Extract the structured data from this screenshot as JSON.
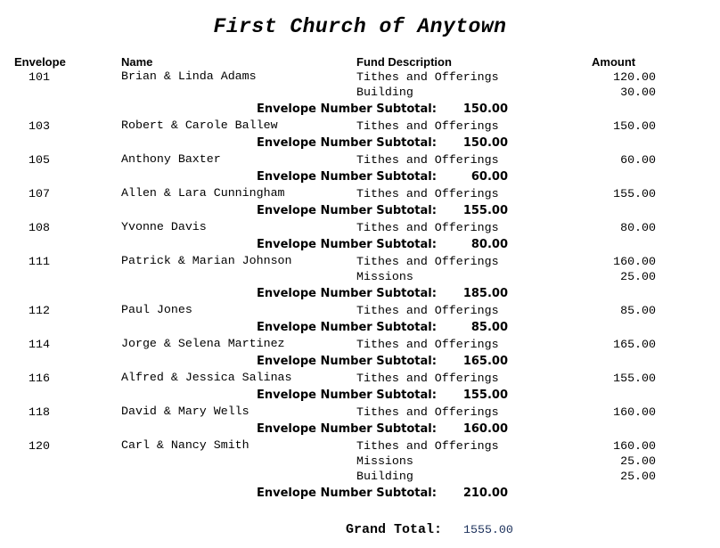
{
  "title": "First Church of Anytown",
  "headers": {
    "envelope": "Envelope",
    "name": "Name",
    "fund": "Fund Description",
    "amount": "Amount"
  },
  "subtotal_label": "Envelope Number Subtotal:",
  "groups": [
    {
      "envelope": "101",
      "name": "Brian & Linda Adams",
      "items": [
        {
          "fund": "Tithes and Offerings",
          "amount": "120.00"
        },
        {
          "fund": "Building",
          "amount": "30.00"
        }
      ],
      "subtotal": "150.00"
    },
    {
      "envelope": "103",
      "name": "Robert & Carole Ballew",
      "items": [
        {
          "fund": "Tithes and Offerings",
          "amount": "150.00"
        }
      ],
      "subtotal": "150.00"
    },
    {
      "envelope": "105",
      "name": "Anthony Baxter",
      "items": [
        {
          "fund": "Tithes and Offerings",
          "amount": "60.00"
        }
      ],
      "subtotal": "60.00"
    },
    {
      "envelope": "107",
      "name": "Allen & Lara Cunningham",
      "items": [
        {
          "fund": "Tithes and Offerings",
          "amount": "155.00"
        }
      ],
      "subtotal": "155.00"
    },
    {
      "envelope": "108",
      "name": "Yvonne Davis",
      "items": [
        {
          "fund": "Tithes and Offerings",
          "amount": "80.00"
        }
      ],
      "subtotal": "80.00"
    },
    {
      "envelope": "111",
      "name": "Patrick & Marian Johnson",
      "items": [
        {
          "fund": "Tithes and Offerings",
          "amount": "160.00"
        },
        {
          "fund": "Missions",
          "amount": "25.00"
        }
      ],
      "subtotal": "185.00"
    },
    {
      "envelope": "112",
      "name": "Paul Jones",
      "items": [
        {
          "fund": "Tithes and Offerings",
          "amount": "85.00"
        }
      ],
      "subtotal": "85.00"
    },
    {
      "envelope": "114",
      "name": "Jorge & Selena Martinez",
      "items": [
        {
          "fund": "Tithes and Offerings",
          "amount": "165.00"
        }
      ],
      "subtotal": "165.00"
    },
    {
      "envelope": "116",
      "name": "Alfred & Jessica Salinas",
      "items": [
        {
          "fund": "Tithes and Offerings",
          "amount": "155.00"
        }
      ],
      "subtotal": "155.00"
    },
    {
      "envelope": "118",
      "name": "David & Mary Wells",
      "items": [
        {
          "fund": "Tithes and Offerings",
          "amount": "160.00"
        }
      ],
      "subtotal": "160.00"
    },
    {
      "envelope": "120",
      "name": "Carl & Nancy Smith",
      "items": [
        {
          "fund": "Tithes and Offerings",
          "amount": "160.00"
        },
        {
          "fund": "Missions",
          "amount": "25.00"
        },
        {
          "fund": "Building",
          "amount": "25.00"
        }
      ],
      "subtotal": "210.00"
    }
  ],
  "grand_total": {
    "label": "Grand Total:",
    "value": "1555.00"
  }
}
